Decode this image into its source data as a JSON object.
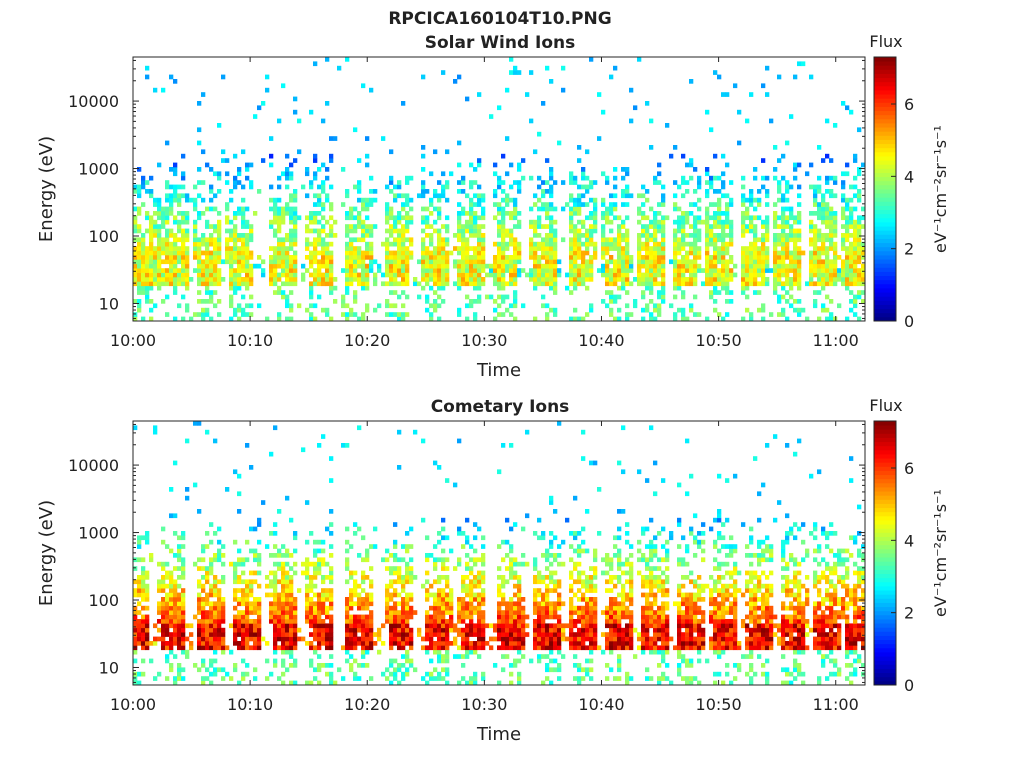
{
  "figure": {
    "title": "RPCICA160104T10.PNG",
    "colorscale": [
      "#00007f",
      "#0000ff",
      "#007fff",
      "#00ffff",
      "#7fff7f",
      "#ffff00",
      "#ff7f00",
      "#ff0000",
      "#7f0000"
    ]
  },
  "chart_data": [
    {
      "type": "heatmap",
      "id": "solar",
      "title": "Solar Wind Ions",
      "xlabel": "Time",
      "ylabel": "Energy (eV)",
      "yscale": "log",
      "ylim": [
        5.5,
        45000
      ],
      "xlim": [
        "10:00",
        "11:02.5"
      ],
      "xticks": [
        "10:00",
        "10:10",
        "10:20",
        "10:30",
        "10:40",
        "10:50",
        "11:00"
      ],
      "yticks": [
        10,
        100,
        1000,
        10000
      ],
      "ytick_labels": [
        "10",
        "100",
        "1000",
        "10000"
      ],
      "colorbar": {
        "title": "Flux",
        "label": "eV⁻¹cm⁻²sr⁻¹s⁻¹",
        "range": [
          0,
          7.3
        ],
        "ticks": [
          0,
          2,
          4,
          6
        ],
        "tick_labels": [
          "0",
          "2",
          "4",
          "6"
        ]
      },
      "band_level": 4.4,
      "band_energy": [
        18,
        45
      ],
      "burst_minutes": [
        0.3,
        2.0,
        3.6,
        6.4,
        9.2,
        12.8,
        16.0,
        19.2,
        22.6,
        25.8,
        28.8,
        31.8,
        35.1,
        38.3,
        41.3,
        44.3,
        47.2,
        50.1,
        53.0,
        55.9,
        58.9,
        61.5
      ],
      "burst_peak_level": 4.6,
      "scatter_level": 1.9
    },
    {
      "type": "heatmap",
      "id": "comet",
      "title": "Cometary Ions",
      "xlabel": "Time",
      "ylabel": "Energy (eV)",
      "yscale": "log",
      "ylim": [
        5.5,
        45000
      ],
      "xlim": [
        "10:00",
        "11:02.5"
      ],
      "xticks": [
        "10:00",
        "10:10",
        "10:20",
        "10:30",
        "10:40",
        "10:50",
        "11:00"
      ],
      "yticks": [
        10,
        100,
        1000,
        10000
      ],
      "ytick_labels": [
        "10",
        "100",
        "1000",
        "10000"
      ],
      "colorbar": {
        "title": "Flux",
        "label": "eV⁻¹cm⁻²sr⁻¹s⁻¹",
        "range": [
          0,
          7.3
        ],
        "ticks": [
          0,
          2,
          4,
          6
        ],
        "tick_labels": [
          "0",
          "2",
          "4",
          "6"
        ]
      },
      "band_level": 6.4,
      "band_energy": [
        17,
        45
      ],
      "burst_minutes": [
        0.3,
        3.4,
        6.7,
        9.7,
        12.9,
        16.0,
        19.3,
        22.8,
        26.0,
        29.0,
        32.2,
        35.4,
        38.4,
        41.5,
        44.6,
        47.6,
        50.5,
        53.4,
        56.4,
        59.3,
        61.8
      ],
      "burst_peak_level": 5.9,
      "scatter_level": 2.0
    }
  ]
}
